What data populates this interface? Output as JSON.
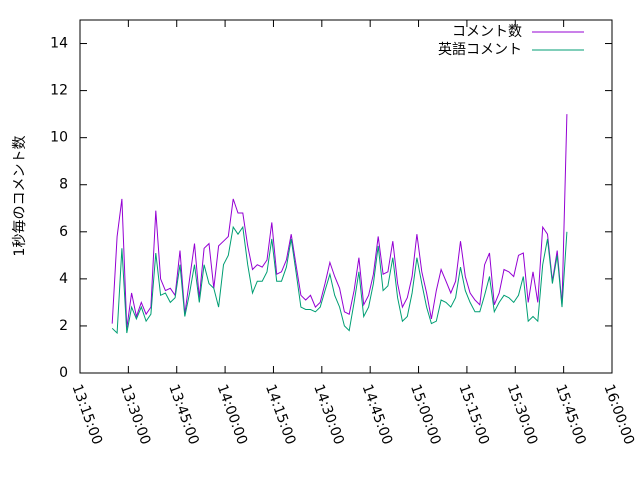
{
  "chart_data": {
    "type": "line",
    "ylabel": "1秒毎のコメント数",
    "x": [
      "13:25:00",
      "13:26:30",
      "13:28:00",
      "13:29:30",
      "13:31:00",
      "13:32:30",
      "13:34:00",
      "13:35:30",
      "13:37:00",
      "13:38:30",
      "13:40:00",
      "13:41:30",
      "13:43:00",
      "13:44:30",
      "13:46:00",
      "13:47:30",
      "13:49:00",
      "13:50:30",
      "13:52:00",
      "13:53:30",
      "13:55:00",
      "13:56:30",
      "13:58:00",
      "13:59:30",
      "14:01:00",
      "14:02:30",
      "14:04:00",
      "14:05:30",
      "14:07:00",
      "14:08:30",
      "14:10:00",
      "14:11:30",
      "14:13:00",
      "14:14:30",
      "14:16:00",
      "14:17:30",
      "14:19:00",
      "14:20:30",
      "14:22:00",
      "14:23:30",
      "14:25:00",
      "14:26:30",
      "14:28:00",
      "14:29:30",
      "14:31:00",
      "14:32:30",
      "14:34:00",
      "14:35:30",
      "14:37:00",
      "14:38:30",
      "14:40:00",
      "14:41:30",
      "14:43:00",
      "14:44:30",
      "14:46:00",
      "14:47:30",
      "14:49:00",
      "14:50:30",
      "14:52:00",
      "14:53:30",
      "14:55:00",
      "14:56:30",
      "14:58:00",
      "14:59:30",
      "15:01:00",
      "15:02:30",
      "15:04:00",
      "15:05:30",
      "15:07:00",
      "15:08:30",
      "15:10:00",
      "15:11:30",
      "15:13:00",
      "15:14:30",
      "15:16:00",
      "15:17:30",
      "15:19:00",
      "15:20:30",
      "15:22:00",
      "15:23:30",
      "15:25:00",
      "15:26:30",
      "15:28:00",
      "15:29:30",
      "15:31:00",
      "15:32:30",
      "15:34:00",
      "15:35:30",
      "15:37:00",
      "15:38:30",
      "15:40:00",
      "15:41:30",
      "15:43:00",
      "15:44:30",
      "15:46:00"
    ],
    "series": [
      {
        "name": "コメント数",
        "color": "#9400d3",
        "values": [
          2.1,
          5.8,
          7.4,
          1.9,
          3.4,
          2.4,
          3.0,
          2.5,
          2.8,
          6.9,
          4.0,
          3.5,
          3.6,
          3.3,
          5.2,
          2.5,
          4.0,
          5.5,
          3.2,
          5.3,
          5.5,
          3.6,
          5.4,
          5.6,
          5.8,
          7.4,
          6.8,
          6.8,
          5.4,
          4.4,
          4.6,
          4.5,
          4.8,
          6.4,
          4.2,
          4.3,
          4.8,
          5.9,
          4.6,
          3.3,
          3.1,
          3.3,
          2.8,
          3.0,
          3.8,
          4.7,
          4.1,
          3.6,
          2.6,
          2.5,
          3.5,
          4.9,
          2.9,
          3.3,
          4.2,
          5.8,
          4.2,
          4.3,
          5.6,
          3.8,
          2.8,
          3.2,
          4.1,
          5.9,
          4.3,
          3.4,
          2.3,
          3.5,
          4.4,
          3.9,
          3.4,
          3.9,
          5.6,
          4.1,
          3.4,
          3.1,
          2.9,
          4.6,
          5.1,
          2.9,
          3.4,
          4.4,
          4.3,
          4.1,
          5.0,
          5.1,
          3.0,
          4.3,
          3.0,
          6.2,
          5.9,
          3.9,
          5.2,
          2.9,
          11.0
        ]
      },
      {
        "name": "英語コメント",
        "color": "#009e73",
        "values": [
          1.9,
          1.7,
          5.3,
          1.7,
          2.8,
          2.3,
          2.8,
          2.2,
          2.5,
          5.1,
          3.3,
          3.4,
          3.0,
          3.2,
          4.6,
          2.4,
          3.4,
          4.6,
          3.0,
          4.6,
          3.8,
          3.6,
          2.8,
          4.6,
          5.0,
          6.2,
          5.9,
          6.2,
          4.6,
          3.4,
          3.9,
          3.9,
          4.3,
          5.7,
          3.9,
          3.9,
          4.5,
          5.7,
          4.3,
          2.8,
          2.7,
          2.7,
          2.6,
          2.8,
          3.5,
          4.2,
          3.3,
          2.8,
          2.0,
          1.8,
          3.0,
          4.3,
          2.4,
          2.8,
          3.8,
          5.4,
          3.5,
          3.7,
          4.9,
          3.2,
          2.2,
          2.4,
          3.4,
          4.9,
          3.8,
          2.8,
          2.1,
          2.2,
          3.1,
          3.0,
          2.8,
          3.2,
          4.5,
          3.5,
          3.0,
          2.6,
          2.6,
          3.3,
          4.1,
          2.6,
          3.0,
          3.3,
          3.2,
          3.0,
          3.3,
          4.1,
          2.2,
          2.4,
          2.2,
          4.6,
          5.7,
          3.8,
          5.0,
          2.8,
          6.0
        ]
      }
    ],
    "xlim": [
      "13:15:00",
      "16:00:00"
    ],
    "xticks": [
      "13:15:00",
      "13:30:00",
      "13:45:00",
      "14:00:00",
      "14:15:00",
      "14:30:00",
      "14:45:00",
      "15:00:00",
      "15:15:00",
      "15:30:00",
      "15:45:00",
      "16:00:00"
    ],
    "ylim": [
      0,
      15
    ],
    "yticks": [
      0,
      2,
      4,
      6,
      8,
      10,
      12,
      14
    ],
    "legend": "top-right"
  }
}
